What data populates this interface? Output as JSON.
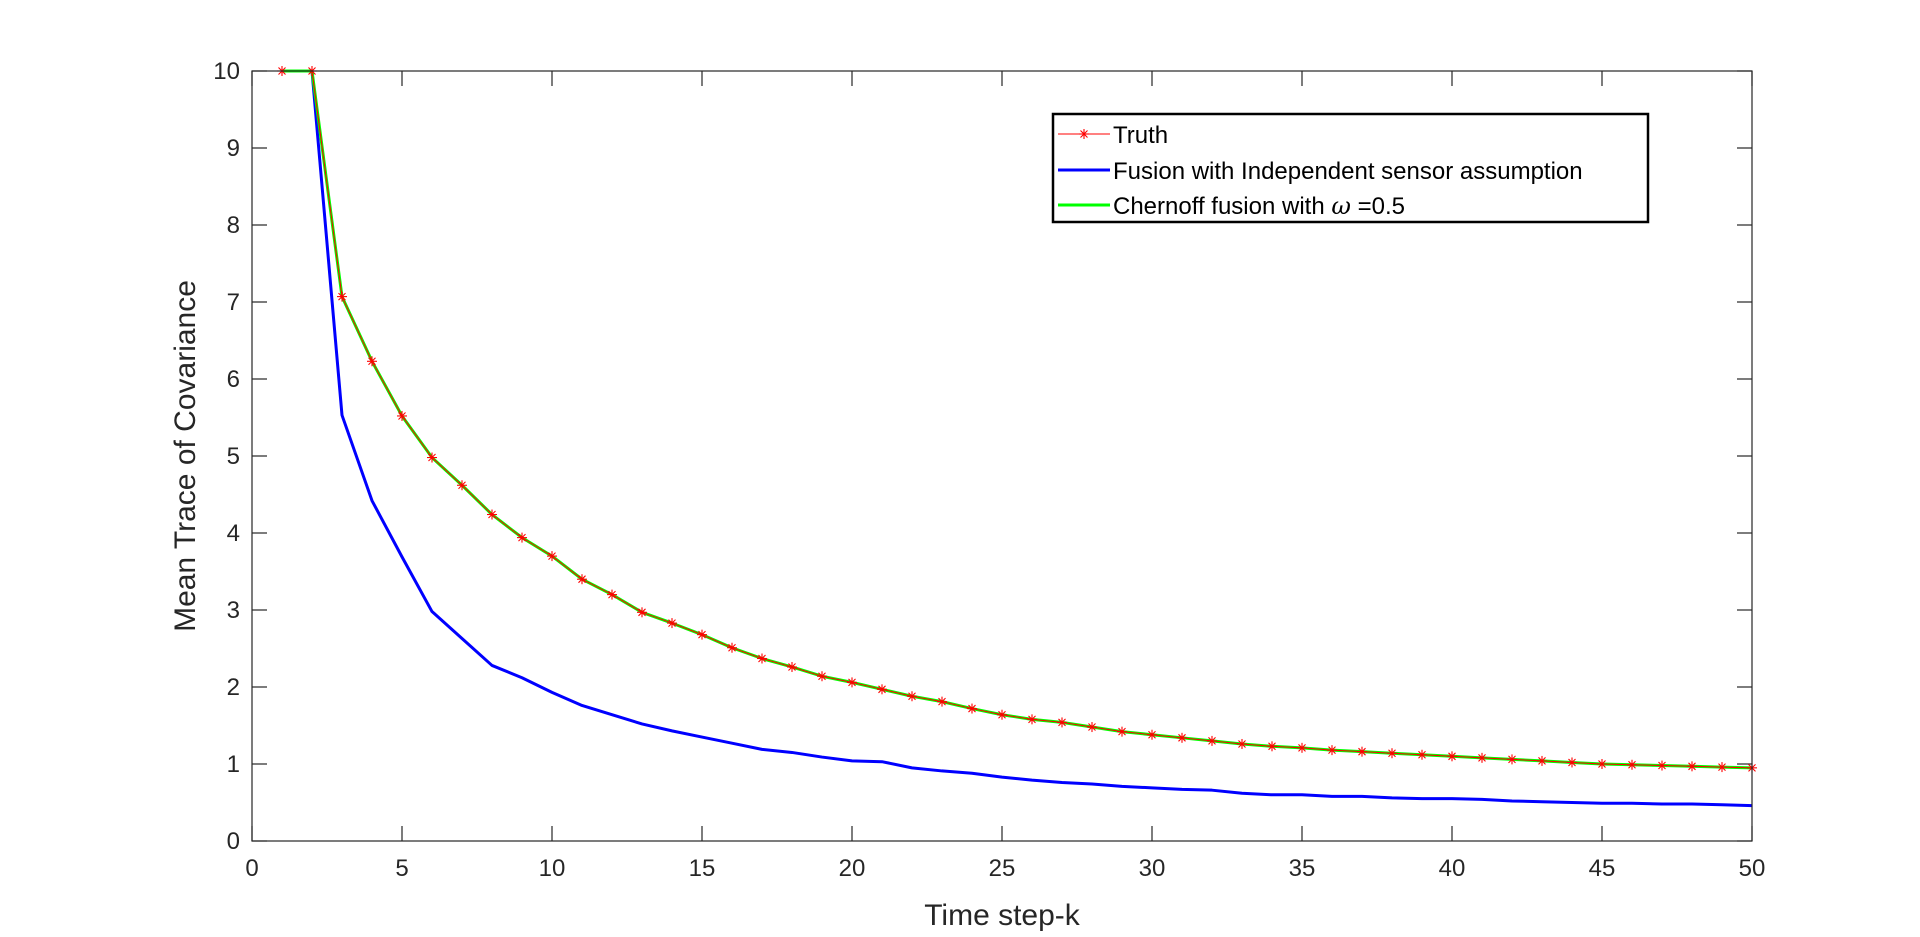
{
  "chart_data": {
    "type": "line",
    "xlabel": "Time step-k",
    "ylabel": "Mean Trace of Covariance",
    "xlim": [
      0,
      50
    ],
    "ylim": [
      0,
      10
    ],
    "xticks": [
      0,
      5,
      10,
      15,
      20,
      25,
      30,
      35,
      40,
      45,
      50
    ],
    "yticks": [
      0,
      1,
      2,
      3,
      4,
      5,
      6,
      7,
      8,
      9,
      10
    ],
    "grid": false,
    "legend_position": "top-right",
    "legend": {
      "truth": "Truth",
      "independent": "Fusion with Independent sensor assumption",
      "chernoff_prefix": "Chernoff fusion with ",
      "chernoff_symbol": "ω",
      "chernoff_suffix": " =0.5"
    },
    "x": [
      1,
      2,
      3,
      4,
      5,
      6,
      7,
      8,
      9,
      10,
      11,
      12,
      13,
      14,
      15,
      16,
      17,
      18,
      19,
      20,
      21,
      22,
      23,
      24,
      25,
      26,
      27,
      28,
      29,
      30,
      31,
      32,
      33,
      34,
      35,
      36,
      37,
      38,
      39,
      40,
      41,
      42,
      43,
      44,
      45,
      46,
      47,
      48,
      49,
      50
    ],
    "series": [
      {
        "name": "Truth",
        "color": "#ff0000",
        "marker": "asterisk",
        "values": [
          10.0,
          10.0,
          7.07,
          6.23,
          5.52,
          4.98,
          4.62,
          4.24,
          3.94,
          3.7,
          3.4,
          3.2,
          2.97,
          2.83,
          2.68,
          2.51,
          2.37,
          2.26,
          2.14,
          2.06,
          1.97,
          1.88,
          1.81,
          1.72,
          1.64,
          1.58,
          1.54,
          1.48,
          1.42,
          1.38,
          1.34,
          1.3,
          1.26,
          1.23,
          1.21,
          1.18,
          1.16,
          1.14,
          1.12,
          1.1,
          1.08,
          1.06,
          1.04,
          1.02,
          1.0,
          0.99,
          0.98,
          0.97,
          0.96,
          0.95
        ]
      },
      {
        "name": "Fusion with Independent sensor assumption",
        "color": "#0000ff",
        "marker": "none",
        "values": [
          10.0,
          10.0,
          5.53,
          4.42,
          3.69,
          2.98,
          2.63,
          2.28,
          2.12,
          1.93,
          1.76,
          1.64,
          1.52,
          1.43,
          1.35,
          1.27,
          1.19,
          1.15,
          1.09,
          1.04,
          1.03,
          0.95,
          0.91,
          0.88,
          0.83,
          0.79,
          0.76,
          0.74,
          0.71,
          0.69,
          0.67,
          0.66,
          0.62,
          0.6,
          0.6,
          0.58,
          0.58,
          0.56,
          0.55,
          0.55,
          0.54,
          0.52,
          0.51,
          0.5,
          0.49,
          0.49,
          0.48,
          0.48,
          0.47,
          0.46
        ]
      },
      {
        "name": "Chernoff fusion with ω =0.5",
        "color": "#00ff00",
        "marker": "none",
        "values": [
          10.0,
          10.0,
          7.07,
          6.23,
          5.52,
          4.98,
          4.62,
          4.24,
          3.94,
          3.7,
          3.4,
          3.2,
          2.97,
          2.83,
          2.68,
          2.51,
          2.37,
          2.26,
          2.14,
          2.06,
          1.97,
          1.88,
          1.81,
          1.72,
          1.64,
          1.58,
          1.54,
          1.48,
          1.42,
          1.38,
          1.34,
          1.3,
          1.26,
          1.23,
          1.21,
          1.18,
          1.16,
          1.14,
          1.12,
          1.1,
          1.08,
          1.06,
          1.04,
          1.02,
          1.0,
          0.99,
          0.98,
          0.97,
          0.96,
          0.95
        ]
      }
    ]
  }
}
